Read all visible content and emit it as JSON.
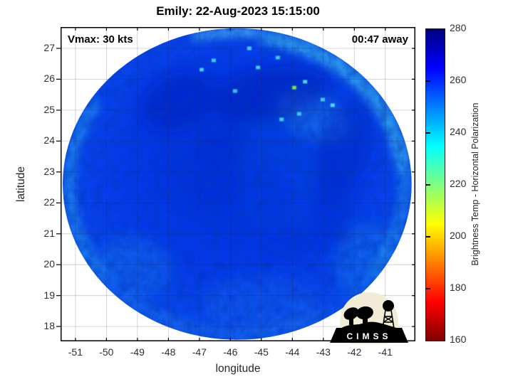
{
  "chart_data": {
    "type": "heatmap",
    "title": "Emily: 22-Aug-2023 15:15:00",
    "xlabel": "longitude",
    "ylabel": "latitude",
    "xlim": [
      -51.48,
      -40.03
    ],
    "ylim": [
      17.52,
      27.69
    ],
    "xticks": [
      -51,
      -50,
      -49,
      -48,
      -47,
      -46,
      -45,
      -44,
      -43,
      -42,
      -41
    ],
    "yticks": [
      27,
      26,
      25,
      24,
      23,
      22,
      21,
      20,
      19,
      18
    ],
    "grid": true,
    "grid_color": "rgba(38,38,38,0.24)",
    "annotations": {
      "top_left": "Vmax: 30 kts",
      "top_right": "00:47 away"
    },
    "colorbar": {
      "label": "Brightness Temp - Horizontal Polarization",
      "min": 160,
      "max": 280,
      "ticks": [
        280,
        260,
        240,
        220,
        200,
        180,
        160
      ],
      "colormap": "jet-reversed",
      "gradient_top_to_bottom": [
        {
          "pos": 0.0,
          "color": "#000080"
        },
        {
          "pos": 0.125,
          "color": "#0000ff"
        },
        {
          "pos": 0.375,
          "color": "#00ffff"
        },
        {
          "pos": 0.625,
          "color": "#ffff00"
        },
        {
          "pos": 0.875,
          "color": "#ff0000"
        },
        {
          "pos": 1.0,
          "color": "#800000"
        }
      ]
    },
    "footprint": {
      "shape": "ellipse",
      "center_lon": -45.78,
      "center_lat": 22.61,
      "radius_lon_deg": 5.63,
      "radius_lat_deg": 5.04,
      "observed_range_K": [
        235,
        278
      ],
      "gradient": [
        {
          "pos": 0.0,
          "color": "#0333dd"
        },
        {
          "pos": 0.5,
          "color": "#0439ee"
        },
        {
          "pos": 0.8,
          "color": "#0a48f0"
        },
        {
          "pos": 1.0,
          "color": "#1663f0"
        }
      ]
    },
    "rim_highlights": [
      {
        "start": 8,
        "end": 80,
        "inset": 10,
        "width": 20,
        "color": "#3cc0f2",
        "op": 0.75
      },
      {
        "start": 84,
        "end": 104,
        "inset": 6,
        "width": 9,
        "color": "#62dcf6",
        "op": 0.9
      },
      {
        "start": -35,
        "end": 8,
        "inset": 10,
        "width": 16,
        "color": "#2fa8f0",
        "op": 0.55
      },
      {
        "start": 148,
        "end": 218,
        "inset": 9,
        "width": 16,
        "color": "#2fa9f2",
        "op": 0.6
      },
      {
        "start": 230,
        "end": 300,
        "inset": 10,
        "width": 14,
        "color": "#1e7cf0",
        "op": 0.5
      }
    ],
    "regions": [
      {
        "lon": -49.18,
        "lat": 19.87,
        "rx": 1.26,
        "ry": 1.04,
        "rot": 0,
        "color": "#1a74f0",
        "op": 0.5
      },
      {
        "lon": -44.58,
        "lat": 23.09,
        "rx": 1.38,
        "ry": 2.07,
        "rot": 0,
        "color": "#0f52f0",
        "op": 0.3
      },
      {
        "lon": -43.32,
        "lat": 24.81,
        "rx": 1.26,
        "ry": 0.69,
        "rot": 25,
        "color": "#2496f0",
        "op": 0.45
      },
      {
        "lon": -45.04,
        "lat": 18.72,
        "rx": 1.84,
        "ry": 0.92,
        "rot": 0,
        "color": "#1565f0",
        "op": 0.45
      },
      {
        "lon": -41.59,
        "lat": 20.1,
        "rx": 1.03,
        "ry": 1.26,
        "rot": 0,
        "color": "#1e86f0",
        "op": 0.4
      },
      {
        "lon": -47.69,
        "lat": 25.27,
        "rx": 1.26,
        "ry": 0.92,
        "rot": -25,
        "color": "#001cb8",
        "op": 0.5
      },
      {
        "lon": -44.7,
        "lat": 25.5,
        "rx": 1.95,
        "ry": 0.87,
        "rot": -8,
        "color": "#0018b0",
        "op": 0.5
      },
      {
        "lon": -42.33,
        "lat": 23.78,
        "rx": 0.87,
        "ry": 1.61,
        "rot": 15,
        "color": "#0020c0",
        "op": 0.45
      },
      {
        "lon": -42.74,
        "lat": 21.59,
        "rx": 0.69,
        "ry": 1.27,
        "rot": -10,
        "color": "#0026c8",
        "op": 0.35
      },
      {
        "lon": -46.88,
        "lat": 22.86,
        "rx": 1.38,
        "ry": 1.04,
        "rot": 20,
        "color": "#0128d8",
        "op": 0.32
      },
      {
        "lon": -45.39,
        "lat": 22.05,
        "rx": 1.61,
        "ry": 1.15,
        "rot": 0,
        "color": "#0130e0",
        "op": 0.28
      },
      {
        "lon": -46.19,
        "lat": 24.01,
        "rx": 0.92,
        "ry": 0.69,
        "rot": 0,
        "color": "#0124cc",
        "op": 0.4
      },
      {
        "lon": -43.89,
        "lat": 20.79,
        "rx": 1.03,
        "ry": 0.46,
        "rot": 10,
        "color": "#0128d0",
        "op": 0.3
      }
    ],
    "bright_speckles": [
      {
        "lon": -44.47,
        "lat": 26.7,
        "color": "#35d7e8"
      },
      {
        "lon": -43.94,
        "lat": 25.73,
        "color": "#8be84f"
      },
      {
        "lon": -43.59,
        "lat": 25.92,
        "color": "#49e8d0"
      },
      {
        "lon": -43.02,
        "lat": 25.34,
        "color": "#3fd9ec"
      },
      {
        "lon": -42.7,
        "lat": 25.16,
        "color": "#52e0f0"
      },
      {
        "lon": -45.85,
        "lat": 25.62,
        "color": "#38d2ec"
      },
      {
        "lon": -44.35,
        "lat": 24.7,
        "color": "#40d8e8"
      },
      {
        "lon": -45.11,
        "lat": 26.38,
        "color": "#44dce8"
      },
      {
        "lon": -46.54,
        "lat": 26.61,
        "color": "#3ed4ea"
      },
      {
        "lon": -46.93,
        "lat": 26.31,
        "color": "#46d8ee"
      },
      {
        "lon": -43.78,
        "lat": 24.88,
        "color": "#3cd4e8"
      },
      {
        "lon": -45.39,
        "lat": 27.0,
        "color": "#50dcf0"
      }
    ],
    "dark_speckles": [
      {
        "lon": -46.88,
        "lat": 19.64
      },
      {
        "lon": -45.96,
        "lat": 18.95
      },
      {
        "lon": -45.04,
        "lat": 19.41
      },
      {
        "lon": -44.47,
        "lat": 18.49
      },
      {
        "lon": -43.89,
        "lat": 19.18
      },
      {
        "lon": -43.2,
        "lat": 18.6
      },
      {
        "lon": -45.73,
        "lat": 18.26
      },
      {
        "lon": -44.35,
        "lat": 17.91
      },
      {
        "lon": -43.43,
        "lat": 19.87
      },
      {
        "lon": -42.74,
        "lat": 19.52
      },
      {
        "lon": -47.34,
        "lat": 20.1
      },
      {
        "lon": -46.31,
        "lat": 19.98
      },
      {
        "lon": -45.39,
        "lat": 19.52
      },
      {
        "lon": -44.81,
        "lat": 19.98
      }
    ],
    "logo": {
      "text": "CIMSS",
      "circle_color": "#f2ecd6",
      "silhouette_color": "#000000"
    },
    "layout": {
      "axes_rect": [
        85,
        38,
        498,
        442
      ],
      "colorbar_rect": [
        597,
        40,
        26,
        438
      ]
    }
  }
}
